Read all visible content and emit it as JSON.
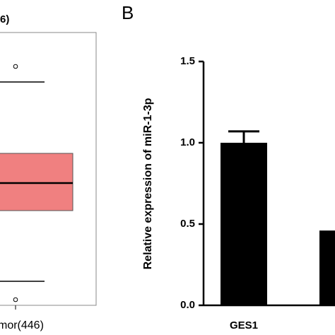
{
  "chart_data": [
    {
      "type": "box",
      "title": "6)",
      "categories": [
        "mor(446)"
      ],
      "color": "#f08080"
    },
    {
      "type": "bar",
      "panel_label": "B",
      "ylabel": "Relative expression of miR-1-3p",
      "categories": [
        "GES1",
        null
      ],
      "values": [
        1.0,
        0.46
      ],
      "errors": [
        0.07,
        null
      ],
      "color": "#000000",
      "ylim": [
        0,
        1.5
      ],
      "yticks": [
        {
          "value": 0,
          "label": "0.0"
        },
        0.5,
        {
          "value": 1,
          "label": "1.0"
        },
        1.5
      ]
    }
  ]
}
